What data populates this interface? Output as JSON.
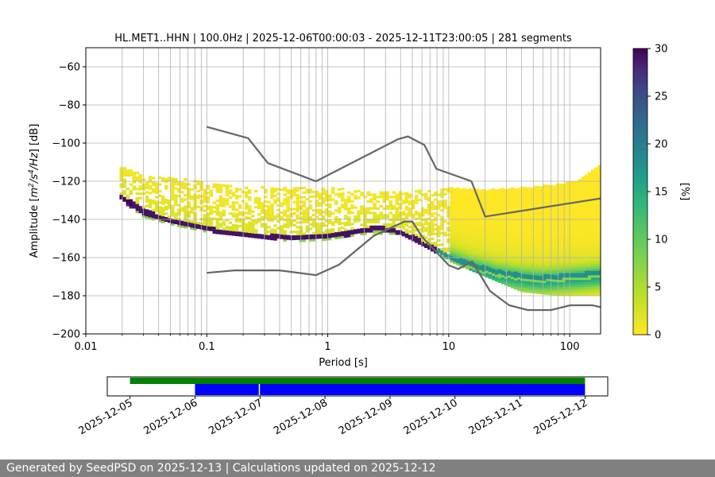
{
  "chart_data": {
    "type": "heatmap",
    "title": "HL.MET1..HHN | 100.0Hz | 2025-12-06T00:00:03 - 2025-12-11T23:00:05 | 281 segments",
    "xlabel": "Period [s]",
    "ylabel_main": "Amplitude [",
    "ylabel_math_1": "m",
    "ylabel_sup_1": "2",
    "ylabel_math_2": "/s",
    "ylabel_sup_2": "4",
    "ylabel_math_3": "/Hz",
    "ylabel_end": "] [dB]",
    "xscale": "log",
    "xlim": [
      0.01,
      180
    ],
    "ylim": [
      -200,
      -50
    ],
    "xticks": [
      {
        "value": 0.01,
        "label": "0.01"
      },
      {
        "value": 0.1,
        "label": "0.1"
      },
      {
        "value": 1,
        "label": "1"
      },
      {
        "value": 10,
        "label": "10"
      },
      {
        "value": 100,
        "label": "100"
      }
    ],
    "yticks": [
      {
        "value": -60,
        "label": "−60"
      },
      {
        "value": -80,
        "label": "−80"
      },
      {
        "value": -100,
        "label": "−100"
      },
      {
        "value": -120,
        "label": "−120"
      },
      {
        "value": -140,
        "label": "−140"
      },
      {
        "value": -160,
        "label": "−160"
      },
      {
        "value": -180,
        "label": "−180"
      },
      {
        "value": -200,
        "label": "−200"
      }
    ],
    "grid": true,
    "colorbar": {
      "label": "[%]",
      "range": [
        0,
        30
      ],
      "ticks": [
        {
          "value": 0,
          "label": "0"
        },
        {
          "value": 5,
          "label": "5"
        },
        {
          "value": 10,
          "label": "10"
        },
        {
          "value": 15,
          "label": "15"
        },
        {
          "value": 20,
          "label": "20"
        },
        {
          "value": 25,
          "label": "25"
        },
        {
          "value": 30,
          "label": "30"
        }
      ],
      "colormap": "viridis_r"
    },
    "high_noise_model": [
      [
        0.1,
        -91.5
      ],
      [
        0.22,
        -97.4
      ],
      [
        0.32,
        -110.5
      ],
      [
        0.8,
        -120
      ],
      [
        3.8,
        -98
      ],
      [
        4.6,
        -96.5
      ],
      [
        6.3,
        -101
      ],
      [
        7.9,
        -113.5
      ],
      [
        15.4,
        -120
      ],
      [
        20,
        -138.5
      ],
      [
        180,
        -129
      ]
    ],
    "low_noise_model": [
      [
        0.1,
        -168
      ],
      [
        0.17,
        -166.7
      ],
      [
        0.4,
        -166.7
      ],
      [
        0.8,
        -169.2
      ],
      [
        1.24,
        -163.7
      ],
      [
        2.4,
        -148.6
      ],
      [
        4.3,
        -141.1
      ],
      [
        5.0,
        -141.1
      ],
      [
        6.0,
        -149
      ],
      [
        10,
        -164
      ],
      [
        12,
        -166
      ],
      [
        15.6,
        -162.1
      ],
      [
        21.9,
        -177.5
      ],
      [
        31.6,
        -185
      ],
      [
        45,
        -187.5
      ],
      [
        70,
        -187.5
      ],
      [
        101,
        -185
      ],
      [
        154,
        -185
      ],
      [
        180,
        -186
      ]
    ],
    "mode_curve": [
      [
        0.019,
        -128
      ],
      [
        0.025,
        -133
      ],
      [
        0.03,
        -136.5
      ],
      [
        0.05,
        -141
      ],
      [
        0.08,
        -144
      ],
      [
        0.12,
        -146.5
      ],
      [
        0.2,
        -148
      ],
      [
        0.3,
        -149.5
      ],
      [
        0.5,
        -150
      ],
      [
        1.0,
        -149.5
      ],
      [
        1.5,
        -148
      ],
      [
        2.5,
        -145
      ],
      [
        3.5,
        -146.5
      ],
      [
        5.0,
        -150
      ],
      [
        7.0,
        -155
      ],
      [
        10,
        -160
      ],
      [
        15,
        -164
      ],
      [
        25,
        -168
      ],
      [
        40,
        -170
      ],
      [
        60,
        -171
      ],
      [
        100,
        -170
      ],
      [
        150,
        -169
      ],
      [
        180,
        -168.5
      ]
    ],
    "spread_band": {
      "periods": [
        0.019,
        0.03,
        0.05,
        0.1,
        0.2,
        0.5,
        1,
        2,
        4,
        7,
        10,
        20,
        40,
        80,
        120,
        180
      ],
      "upper": [
        -113,
        -117,
        -118,
        -121,
        -123,
        -124,
        -124,
        -125,
        -126,
        -125,
        -124,
        -125,
        -124,
        -122,
        -120,
        -112
      ],
      "lower": [
        -130,
        -139,
        -143,
        -147,
        -149,
        -152,
        -151,
        -148,
        -148,
        -156,
        -162,
        -170,
        -178,
        -180,
        -180,
        -180
      ]
    }
  },
  "coverage": {
    "date_labels": [
      "2025-12-05",
      "2025-12-06",
      "2025-12-07",
      "2025-12-08",
      "2025-12-09",
      "2025-12-10",
      "2025-12-11",
      "2025-12-12"
    ],
    "range_days": [
      -0.35,
      7.35
    ],
    "data_bar": {
      "start": 0,
      "end": 7,
      "color": "#008000"
    },
    "psd_bar": {
      "start": 1,
      "end": 7,
      "color": "#0000ff"
    },
    "gap_at": 1.99
  },
  "footer": {
    "text": "Generated by SeedPSD on 2025-12-13 | Calculations updated on 2025-12-12"
  },
  "colors": {
    "model_lines": "#666666",
    "grid": "#b0b0b0"
  }
}
